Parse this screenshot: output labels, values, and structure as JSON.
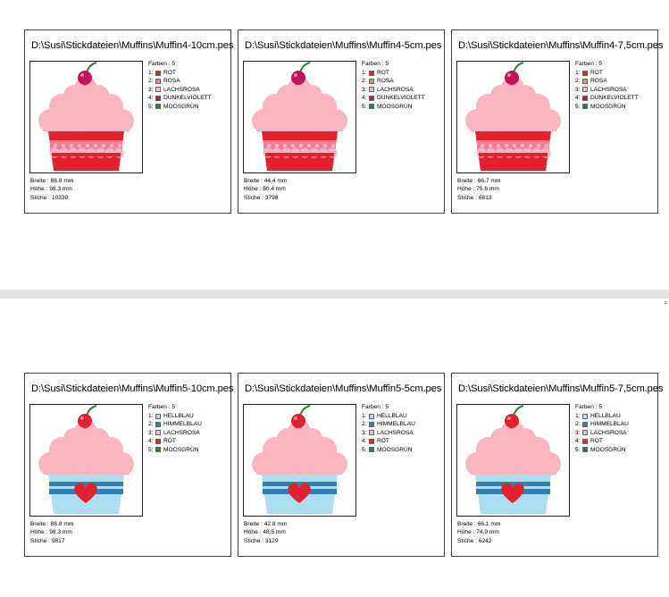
{
  "labels": {
    "colors_header": "Farben : 5",
    "width": "Breite : ",
    "height": "Höhe : ",
    "stitches": "Stiche : "
  },
  "page_mark": "F",
  "palettes": {
    "muffin4": [
      {
        "num": "1:",
        "name": "ROT",
        "color": "#e3202b"
      },
      {
        "num": "2:",
        "name": "ROSA",
        "color": "#f17f94"
      },
      {
        "num": "3:",
        "name": "LACHSROSA",
        "color": "#f9b5c0"
      },
      {
        "num": "4:",
        "name": "DUNKELVIOLETT",
        "color": "#c8105c"
      },
      {
        "num": "5:",
        "name": "MOOSGRÜN",
        "color": "#2e7d32"
      }
    ],
    "muffin5": [
      {
        "num": "1:",
        "name": "HELLBLAU",
        "color": "#a9dff0"
      },
      {
        "num": "2:",
        "name": "HIMMELBLAU",
        "color": "#2f7fb8"
      },
      {
        "num": "3:",
        "name": "LACHSROSA",
        "color": "#f9b5c0"
      },
      {
        "num": "4:",
        "name": "ROT",
        "color": "#e3202b"
      },
      {
        "num": "5:",
        "name": "MOOSGRÜN",
        "color": "#2e7d32"
      }
    ]
  },
  "cards": [
    {
      "title": "D:\\Susi\\Stickdateien\\Muffins\\Muffin4-10cm.pes",
      "width": "86.8 mm",
      "height": "98.3 mm",
      "stitches": "10330"
    },
    {
      "title": "D:\\Susi\\Stickdateien\\Muffins\\Muffin4-5cm.pes",
      "width": "44.4 mm",
      "height": "50.4 mm",
      "stitches": "3798"
    },
    {
      "title": "D:\\Susi\\Stickdateien\\Muffins\\Muffin4-7,5cm.pes",
      "width": "66.7 mm",
      "height": "75.6 mm",
      "stitches": "6813"
    },
    {
      "title": "D:\\Susi\\Stickdateien\\Muffins\\Muffin5-10cm.pes",
      "width": "86.8 mm",
      "height": "98.3 mm",
      "stitches": "9817"
    },
    {
      "title": "D:\\Susi\\Stickdateien\\Muffins\\Muffin5-5cm.pes",
      "width": "42.8 mm",
      "height": "48.5 mm",
      "stitches": "3129"
    },
    {
      "title": "D:\\Susi\\Stickdateien\\Muffins\\Muffin5-7,5cm.pes",
      "width": "66.1 mm",
      "height": "74.9 mm",
      "stitches": "6242"
    }
  ]
}
